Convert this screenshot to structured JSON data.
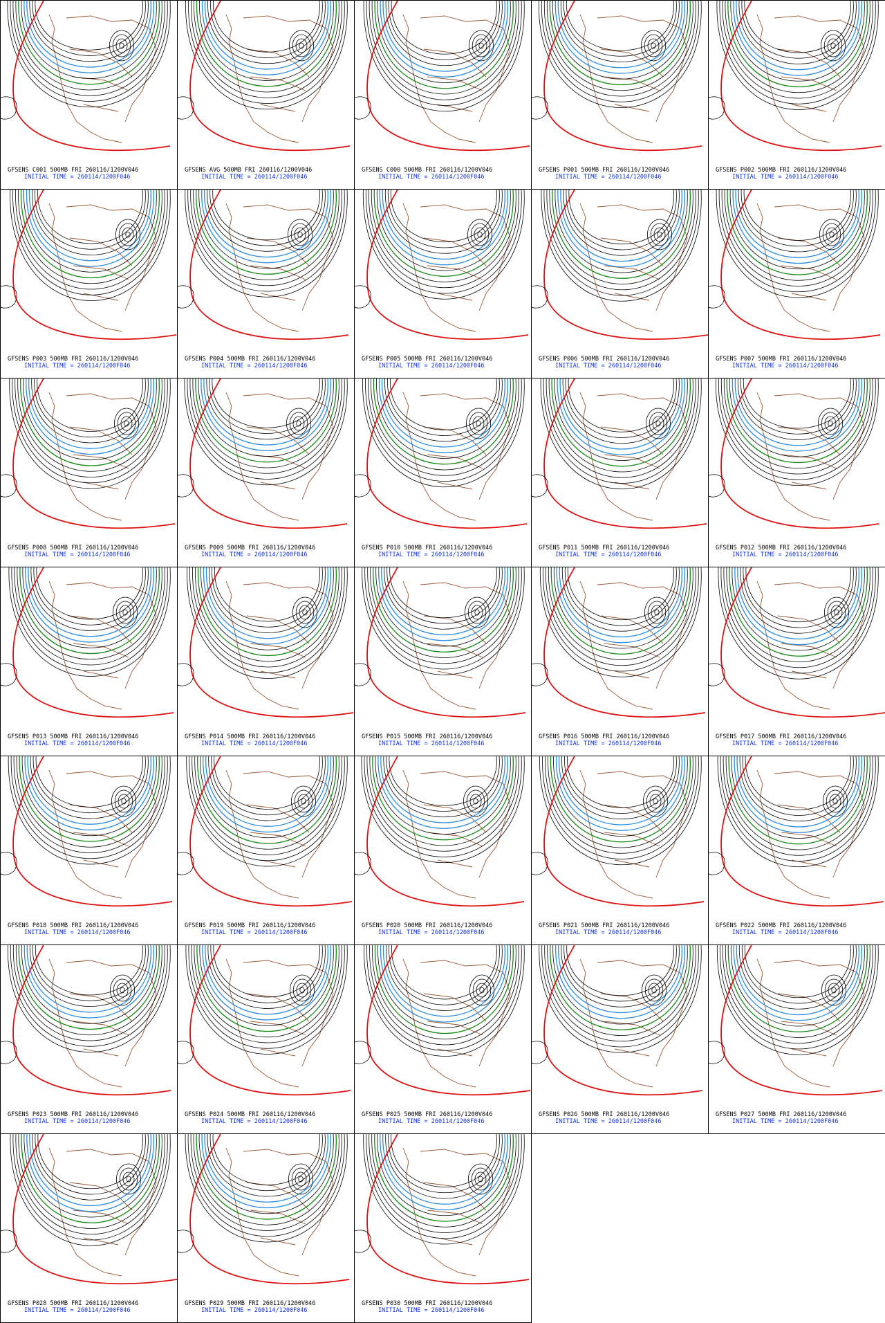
{
  "panels": [
    {
      "title": "GFSENS C001 500MB FRI 260116/1200V046",
      "subtitle": "INITIAL TIME = 260114/1200F046"
    },
    {
      "title": "GFSENS AVG 500MB FRI 260116/1200V046",
      "subtitle": "INITIAL TIME = 260114/1200F046"
    },
    {
      "title": "GFSENS C000 500MB FRI 260116/1200V046",
      "subtitle": "INITIAL TIME = 260114/1200F046"
    },
    {
      "title": "GFSENS P001 500MB FRI 260116/1200V046",
      "subtitle": "INITIAL TIME = 260114/1200F046"
    },
    {
      "title": "GFSENS P002 500MB FRI 260116/1200V046",
      "subtitle": "INITIAL TIME = 260114/1200F046"
    },
    {
      "title": "GFSENS P003 500MB FRI 260116/1200V046",
      "subtitle": "INITIAL TIME = 260114/1200F046"
    },
    {
      "title": "GFSENS P004 500MB FRI 260116/1200V046",
      "subtitle": "INITIAL TIME = 260114/1200F046"
    },
    {
      "title": "GFSENS P005 500MB FRI 260116/1200V046",
      "subtitle": "INITIAL TIME = 260114/1200F046"
    },
    {
      "title": "GFSENS P006 500MB FRI 260116/1200V046",
      "subtitle": "INITIAL TIME = 260114/1200F046"
    },
    {
      "title": "GFSENS P007 500MB FRI 260116/1200V046",
      "subtitle": "INITIAL TIME = 260114/1200F046"
    },
    {
      "title": "GFSENS P008 500MB FRI 260116/1200V046",
      "subtitle": "INITIAL TIME = 260114/1200F046"
    },
    {
      "title": "GFSENS P009 500MB FRI 260116/1200V046",
      "subtitle": "INITIAL TIME = 260114/1200F046"
    },
    {
      "title": "GFSENS P010 500MB FRI 260116/1200V046",
      "subtitle": "INITIAL TIME = 260114/1200F046"
    },
    {
      "title": "GFSENS P011 500MB FRI 260116/1200V046",
      "subtitle": "INITIAL TIME = 260114/1200F046"
    },
    {
      "title": "GFSENS P012 500MB FRI 260116/1200V046",
      "subtitle": "INITIAL TIME = 260114/1200F046"
    },
    {
      "title": "GFSENS P013 500MB FRI 260116/1200V046",
      "subtitle": "INITIAL TIME = 260114/1200F046"
    },
    {
      "title": "GFSENS P014 500MB FRI 260116/1200V046",
      "subtitle": "INITIAL TIME = 260114/1200F046"
    },
    {
      "title": "GFSENS P015 500MB FRI 260116/1200V046",
      "subtitle": "INITIAL TIME = 260114/1200F046"
    },
    {
      "title": "GFSENS P016 500MB FRI 260116/1200V046",
      "subtitle": "INITIAL TIME = 260114/1200F046"
    },
    {
      "title": "GFSENS P017 500MB FRI 260116/1200V046",
      "subtitle": "INITIAL TIME = 260114/1200F046"
    },
    {
      "title": "GFSENS P018 500MB FRI 260116/1200V046",
      "subtitle": "INITIAL TIME = 260114/1200F046"
    },
    {
      "title": "GFSENS P019 500MB FRI 260116/1200V046",
      "subtitle": "INITIAL TIME = 260114/1200F046"
    },
    {
      "title": "GFSENS P020 500MB FRI 260116/1200V046",
      "subtitle": "INITIAL TIME = 260114/1200F046"
    },
    {
      "title": "GFSENS P021 500MB FRI 260116/1200V046",
      "subtitle": "INITIAL TIME = 260114/1200F046"
    },
    {
      "title": "GFSENS P022 500MB FRI 260116/1200V046",
      "subtitle": "INITIAL TIME = 260114/1200F046"
    },
    {
      "title": "GFSENS P023 500MB FRI 260116/1200V046",
      "subtitle": "INITIAL TIME = 260114/1200F046"
    },
    {
      "title": "GFSENS P024 500MB FRI 260116/1200V046",
      "subtitle": "INITIAL TIME = 260114/1200F046"
    },
    {
      "title": "GFSENS P025 500MB FRI 260116/1200V046",
      "subtitle": "INITIAL TIME = 260114/1200F046"
    },
    {
      "title": "GFSENS P026 500MB FRI 260116/1200V046",
      "subtitle": "INITIAL TIME = 260114/1200F046"
    },
    {
      "title": "GFSENS P027 500MB FRI 260116/1200V046",
      "subtitle": "INITIAL TIME = 260114/1200F046"
    },
    {
      "title": "GFSENS P028 500MB FRI 260116/1200V046",
      "subtitle": "INITIAL TIME = 260114/1200F046"
    },
    {
      "title": "GFSENS P029 500MB FRI 260116/1200V046",
      "subtitle": "INITIAL TIME = 260114/1200F046"
    },
    {
      "title": "GFSENS P030 500MB FRI 260116/1200V046",
      "subtitle": "INITIAL TIME = 260114/1200F046"
    }
  ]
}
